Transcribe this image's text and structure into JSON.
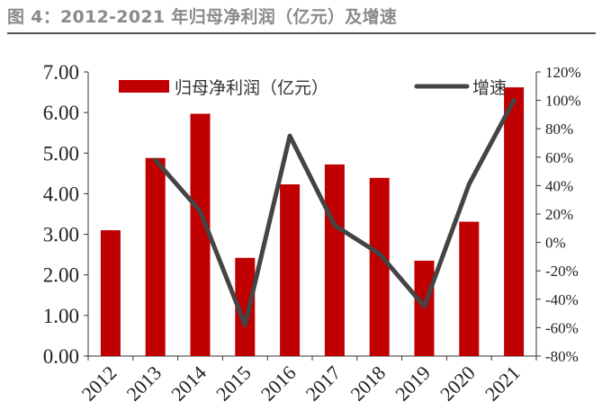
{
  "figure": {
    "title": "图 4：2012-2021 年归母净利润（亿元）及增速"
  },
  "chart_data": {
    "type": "bar",
    "categories": [
      "2012",
      "2013",
      "2014",
      "2015",
      "2016",
      "2017",
      "2018",
      "2019",
      "2020",
      "2021"
    ],
    "series": [
      {
        "name": "归母净利润（亿元）",
        "type": "bar",
        "axis": "left",
        "color": "#c00000",
        "values": [
          3.1,
          4.88,
          5.97,
          2.42,
          4.23,
          4.72,
          4.39,
          2.35,
          3.31,
          6.62
        ]
      },
      {
        "name": "增速",
        "type": "line",
        "axis": "right",
        "color": "#444444",
        "values": [
          null,
          58,
          22,
          -58,
          75,
          12,
          -8,
          -45,
          41,
          100
        ]
      }
    ],
    "y_left": {
      "range": [
        0,
        7
      ],
      "ticks": [
        "0.00",
        "1.00",
        "2.00",
        "3.00",
        "4.00",
        "5.00",
        "6.00",
        "7.00"
      ]
    },
    "y_right": {
      "range": [
        -80,
        120
      ],
      "ticks": [
        "-80%",
        "-60%",
        "-40%",
        "-20%",
        "0%",
        "20%",
        "40%",
        "60%",
        "80%",
        "100%",
        "120%"
      ]
    },
    "legend_position": "top",
    "grid": false
  }
}
